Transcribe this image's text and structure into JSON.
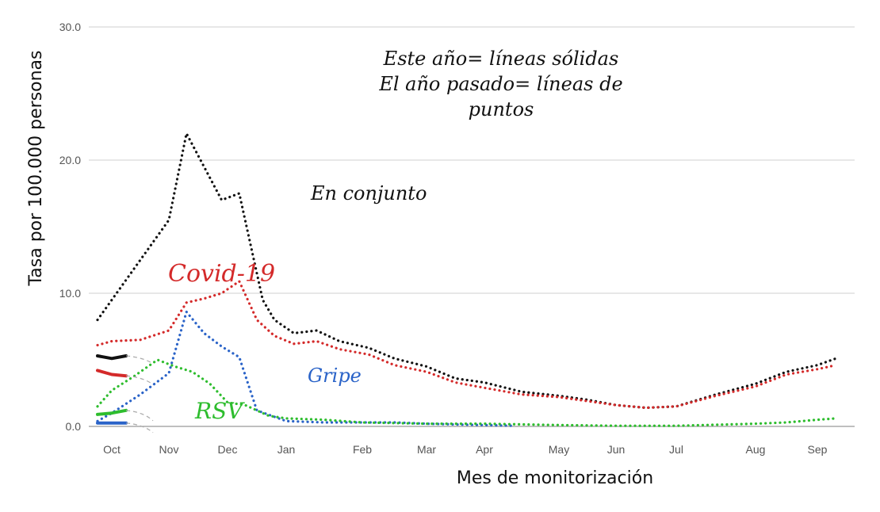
{
  "chart_data": {
    "type": "line",
    "xlabel": "Mes de monitorización",
    "ylabel": "Tasa por 100.000 personas",
    "ylim": [
      0,
      30
    ],
    "yticks": [
      "0.0",
      "10.0",
      "20.0",
      "30.0"
    ],
    "grid": true,
    "categories": [
      "Oct",
      "Nov",
      "Dec",
      "Jan",
      "Feb",
      "Mar",
      "Apr",
      "May",
      "Jun",
      "Jul",
      "Aug",
      "Sep"
    ],
    "annotations": {
      "legend_note": [
        "Este año= líneas sólidas",
        "El año pasado= líneas de",
        "puntos"
      ],
      "overall": "En conjunto",
      "covid": "Covid-19",
      "flu": "Gripe",
      "rsv": "RSV"
    },
    "series": [
      {
        "name": "En conjunto",
        "style": "dotted",
        "color": "#111111",
        "x": [
          -0.25,
          0.0,
          0.5,
          1.0,
          1.3,
          1.6,
          1.9,
          2.2,
          2.6,
          2.8,
          3.1,
          3.4,
          3.7,
          4.1,
          4.5,
          5.0,
          5.5,
          6.0,
          6.5,
          7.0,
          7.5,
          8.0,
          8.5,
          9.0,
          9.5,
          10.0,
          10.5,
          11.0,
          11.3
        ],
        "values": [
          8.0,
          9.5,
          12.5,
          15.5,
          22.0,
          19.5,
          17.0,
          17.5,
          9.5,
          8.0,
          7.0,
          7.2,
          6.4,
          5.9,
          5.1,
          4.5,
          3.6,
          3.3,
          2.6,
          2.3,
          2.0,
          1.6,
          1.4,
          1.5,
          2.4,
          3.2,
          4.1,
          4.6,
          5.1
        ]
      },
      {
        "name": "Covid-19",
        "style": "dotted",
        "color": "#d42a2a",
        "x": [
          -0.25,
          0.0,
          0.5,
          1.0,
          1.3,
          1.6,
          1.9,
          2.2,
          2.5,
          2.8,
          3.1,
          3.4,
          3.7,
          4.1,
          4.5,
          5.0,
          5.5,
          6.0,
          6.5,
          7.0,
          7.5,
          8.0,
          8.5,
          9.0,
          9.5,
          10.0,
          10.5,
          11.0,
          11.3
        ],
        "values": [
          6.1,
          6.4,
          6.5,
          7.2,
          9.3,
          9.6,
          10.0,
          10.9,
          8.0,
          6.8,
          6.2,
          6.4,
          5.8,
          5.4,
          4.6,
          4.1,
          3.3,
          2.9,
          2.4,
          2.2,
          1.9,
          1.6,
          1.4,
          1.5,
          2.3,
          3.0,
          3.9,
          4.3,
          4.6
        ]
      },
      {
        "name": "Gripe",
        "style": "dotted",
        "color": "#2a63c8",
        "x": [
          -0.25,
          0.0,
          0.5,
          1.0,
          1.3,
          1.6,
          1.9,
          2.2,
          2.5,
          3.0,
          3.5,
          4.0,
          4.5,
          5.0,
          5.5,
          6.0,
          6.4
        ],
        "values": [
          0.4,
          1.0,
          2.4,
          4.0,
          8.6,
          7.0,
          6.0,
          5.2,
          1.2,
          0.4,
          0.3,
          0.3,
          0.3,
          0.2,
          0.15,
          0.1,
          0.05
        ]
      },
      {
        "name": "RSV",
        "style": "dotted",
        "color": "#2ebd2e",
        "x": [
          -0.25,
          0.0,
          0.4,
          0.8,
          1.1,
          1.4,
          1.7,
          2.0,
          2.3,
          2.7,
          3.0,
          3.5,
          4.0,
          5.0,
          6.0,
          7.0,
          8.0,
          9.0,
          10.0,
          10.5,
          11.0,
          11.3
        ],
        "values": [
          1.5,
          2.7,
          3.8,
          5.0,
          4.5,
          4.1,
          3.2,
          1.8,
          1.6,
          0.8,
          0.6,
          0.5,
          0.3,
          0.2,
          0.2,
          0.1,
          0.05,
          0.05,
          0.2,
          0.3,
          0.5,
          0.6
        ]
      },
      {
        "name": "En conjunto",
        "style": "solid",
        "color": "#111111",
        "x": [
          -0.25,
          0.0,
          0.25
        ],
        "values": [
          5.3,
          5.1,
          5.3
        ]
      },
      {
        "name": "Covid-19",
        "style": "solid",
        "color": "#d42a2a",
        "x": [
          -0.25,
          0.0,
          0.25
        ],
        "values": [
          4.2,
          3.9,
          3.8
        ]
      },
      {
        "name": "Gripe",
        "style": "solid",
        "color": "#2a63c8",
        "x": [
          -0.25,
          0.0,
          0.25
        ],
        "values": [
          0.25,
          0.25,
          0.25
        ]
      },
      {
        "name": "RSV",
        "style": "solid",
        "color": "#2ebd2e",
        "x": [
          -0.25,
          0.0,
          0.25
        ],
        "values": [
          0.9,
          1.0,
          1.2
        ]
      }
    ]
  }
}
